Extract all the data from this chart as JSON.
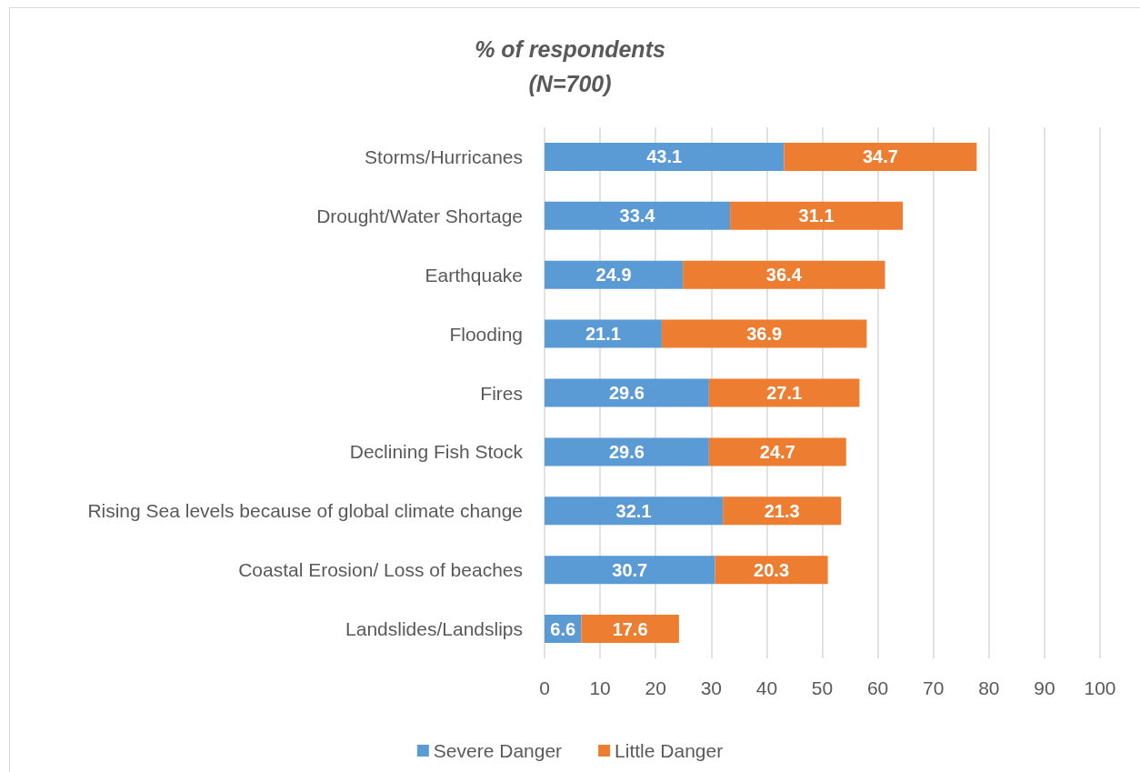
{
  "chart_data": {
    "type": "bar",
    "orientation": "horizontal",
    "stacked": true,
    "title": "% of respondents\n(N=700)",
    "categories": [
      "Storms/Hurricanes",
      "Drought/Water Shortage",
      "Earthquake",
      "Flooding",
      "Fires",
      "Declining Fish Stock",
      "Rising Sea levels because of global climate change",
      "Coastal Erosion/ Loss of beaches",
      "Landslides/Landslips"
    ],
    "series": [
      {
        "name": "Severe Danger",
        "color": "#5b9bd5",
        "values": [
          43.1,
          33.4,
          24.9,
          21.1,
          29.6,
          29.6,
          32.1,
          30.7,
          6.6
        ]
      },
      {
        "name": "Little Danger",
        "color": "#ed7d31",
        "values": [
          34.7,
          31.1,
          36.4,
          36.9,
          27.1,
          24.7,
          21.3,
          20.3,
          17.6
        ]
      }
    ],
    "xlim": [
      0,
      100
    ],
    "xticks": [
      0,
      10,
      20,
      30,
      40,
      50,
      60,
      70,
      80,
      90,
      100
    ],
    "grid": "x",
    "legend": "bottom",
    "data_labels": true
  }
}
